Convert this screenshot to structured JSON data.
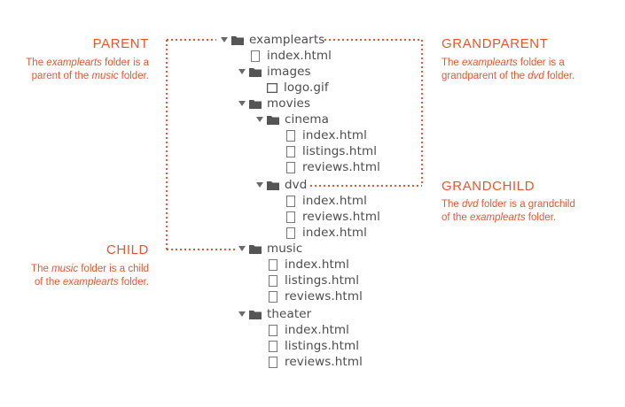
{
  "tree": {
    "root": "examplearts",
    "root_index": "index.html",
    "images": "images",
    "logo": "logo.gif",
    "movies": "movies",
    "cinema": "cinema",
    "cinema_files": [
      "index.html",
      "listings.html",
      "reviews.html"
    ],
    "dvd": "dvd",
    "dvd_files": [
      "index.html",
      "reviews.html",
      "index.html"
    ],
    "music": "music",
    "music_files": [
      "index.html",
      "listings.html",
      "reviews.html"
    ],
    "theater": "theater",
    "theater_files": [
      "index.html",
      "listings.html",
      "reviews.html"
    ]
  },
  "annotations": {
    "parent": {
      "title": "PARENT",
      "line1_pre": "The ",
      "line1_em": "examplearts",
      "line1_post": " folder is a",
      "line2_pre": "parent of the ",
      "line2_em": "music",
      "line2_post": " folder."
    },
    "child": {
      "title": "CHILD",
      "line1_pre": "The ",
      "line1_em": "music",
      "line1_post": " folder is a child",
      "line2_pre": "of the ",
      "line2_em": "examplearts",
      "line2_post": " folder."
    },
    "grandparent": {
      "title": "GRANDPARENT",
      "line1_pre": "The ",
      "line1_em": "examplearts",
      "line1_post": " folder is a",
      "line2_pre": "grandparent of the ",
      "line2_em": "dvd",
      "line2_post": " folder."
    },
    "grandchild": {
      "title": "GRANDCHILD",
      "line1_pre": "The ",
      "line1_em": "dvd",
      "line1_post": " folder is a grandchild",
      "line2_pre": "of the ",
      "line2_em": "examplearts",
      "line2_post": " folder."
    }
  },
  "colors": {
    "accent": "#e8562e",
    "text": "#4d4d4d",
    "icon": "#5a5a5a"
  }
}
